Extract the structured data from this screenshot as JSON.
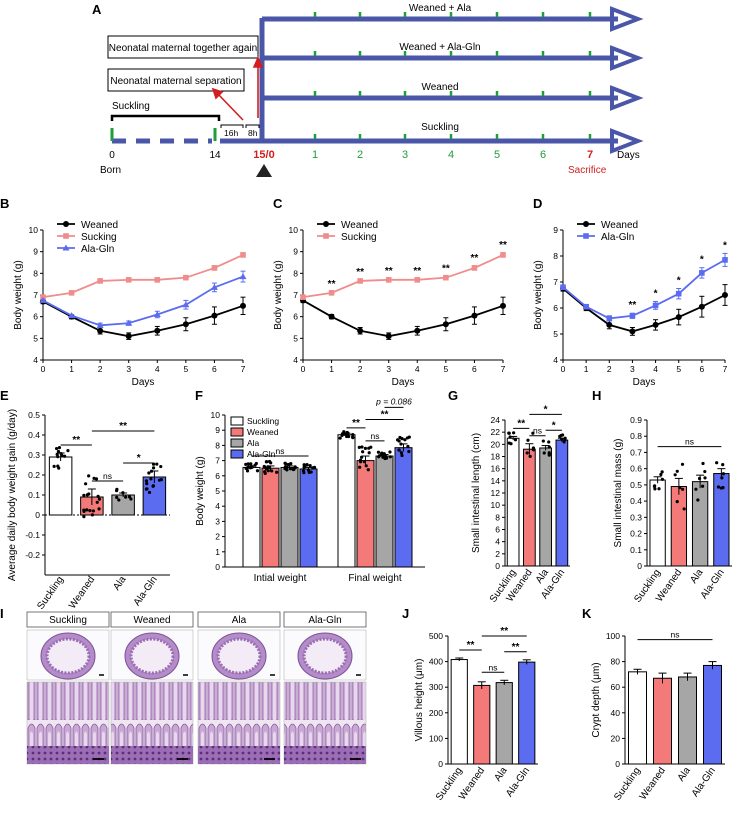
{
  "panel_labels": [
    "A",
    "B",
    "C",
    "D",
    "E",
    "F",
    "G",
    "H",
    "I",
    "J",
    "K"
  ],
  "timeline": {
    "groups": [
      "Weaned + Ala",
      "Weaned + Ala-Gln",
      "Weaned",
      "Suckling"
    ],
    "box_together": "Neonatal maternal together again",
    "box_separation": "Neonatal maternal separation",
    "suckling_label": "Suckling",
    "label_16h": "16h",
    "label_8h": "8h",
    "left_ticks": [
      "0",
      "14"
    ],
    "center_tick": "15/0",
    "day_ticks": [
      "1",
      "2",
      "3",
      "4",
      "5",
      "6",
      "7"
    ],
    "days_label": "Days",
    "born_label": "Born",
    "sacrifice_label": "Sacrifice",
    "colors": {
      "arrow": "#4a56a8",
      "tick": "#1f9e3a",
      "red": "#d21e1e",
      "suckling_bar": "#000000"
    }
  },
  "chart_data": [
    {
      "panel": "B",
      "type": "line",
      "xlabel": "Days",
      "ylabel": "Body weight (g)",
      "x": [
        0,
        1,
        2,
        3,
        4,
        5,
        6,
        7
      ],
      "xlim": [
        0,
        7
      ],
      "ylim": [
        4,
        10
      ],
      "yticks": [
        4,
        5,
        6,
        7,
        8,
        9,
        10
      ],
      "series": [
        {
          "name": "Weaned",
          "color": "#000000",
          "marker": "circle",
          "values": [
            6.7,
            6.0,
            5.35,
            5.1,
            5.35,
            5.65,
            6.05,
            6.5
          ],
          "err": [
            0.1,
            0.1,
            0.15,
            0.15,
            0.2,
            0.3,
            0.4,
            0.4
          ]
        },
        {
          "name": "Sucking",
          "color": "#f08c8c",
          "marker": "square",
          "values": [
            6.9,
            7.1,
            7.65,
            7.7,
            7.7,
            7.8,
            8.25,
            8.85
          ],
          "err": [
            0.05,
            0.05,
            0.05,
            0.05,
            0.05,
            0.05,
            0.1,
            0.1
          ]
        },
        {
          "name": "Ala-Gln",
          "color": "#5b6cf0",
          "marker": "triangle",
          "values": [
            6.75,
            6.05,
            5.6,
            5.7,
            6.1,
            6.55,
            7.35,
            7.85
          ],
          "err": [
            0.05,
            0.05,
            0.1,
            0.1,
            0.15,
            0.2,
            0.2,
            0.25
          ]
        }
      ]
    },
    {
      "panel": "C",
      "type": "line",
      "xlabel": "Days",
      "ylabel": "Body weight (g)",
      "x": [
        0,
        1,
        2,
        3,
        4,
        5,
        6,
        7
      ],
      "xlim": [
        0,
        7
      ],
      "ylim": [
        4,
        10
      ],
      "yticks": [
        4,
        5,
        6,
        7,
        8,
        9,
        10
      ],
      "series": [
        {
          "name": "Weaned",
          "color": "#000000",
          "marker": "circle",
          "values": [
            6.75,
            6.0,
            5.35,
            5.1,
            5.35,
            5.65,
            6.05,
            6.5
          ],
          "err": [
            0.1,
            0.1,
            0.15,
            0.15,
            0.2,
            0.3,
            0.4,
            0.4
          ]
        },
        {
          "name": "Sucking",
          "color": "#f08c8c",
          "marker": "square",
          "values": [
            6.9,
            7.1,
            7.65,
            7.7,
            7.7,
            7.8,
            8.25,
            8.85
          ],
          "err": [
            0.05,
            0.05,
            0.05,
            0.05,
            0.05,
            0.05,
            0.1,
            0.1
          ]
        }
      ],
      "annotations": [
        "",
        "**",
        "**",
        "**",
        "**",
        "**",
        "**",
        "**"
      ]
    },
    {
      "panel": "D",
      "type": "line",
      "xlabel": "Days",
      "ylabel": "Body weight (g)",
      "x": [
        0,
        1,
        2,
        3,
        4,
        5,
        6,
        7
      ],
      "xlim": [
        0,
        7
      ],
      "ylim": [
        4,
        9
      ],
      "yticks": [
        4,
        5,
        6,
        7,
        8,
        9
      ],
      "series": [
        {
          "name": "Weaned",
          "color": "#000000",
          "marker": "circle",
          "values": [
            6.75,
            6.0,
            5.35,
            5.1,
            5.35,
            5.65,
            6.05,
            6.5
          ],
          "err": [
            0.1,
            0.1,
            0.15,
            0.15,
            0.2,
            0.3,
            0.4,
            0.4
          ]
        },
        {
          "name": "Ala-Gln",
          "color": "#5b6cf0",
          "marker": "square",
          "values": [
            6.8,
            6.05,
            5.6,
            5.7,
            6.1,
            6.55,
            7.35,
            7.85
          ],
          "err": [
            0.05,
            0.05,
            0.1,
            0.1,
            0.15,
            0.2,
            0.2,
            0.25
          ]
        }
      ],
      "annotations": [
        "",
        "",
        "",
        "**",
        "*",
        "*",
        "*",
        "*"
      ]
    },
    {
      "panel": "E",
      "type": "bar",
      "ylabel": "Average daily body weight gain (g/day)",
      "categories": [
        "Suckling",
        "Weaned",
        "Ala",
        "Ala-Gln"
      ],
      "values": [
        0.29,
        0.09,
        0.1,
        0.19
      ],
      "err": [
        0.02,
        0.04,
        0.01,
        0.03
      ],
      "ylim": [
        -0.3,
        0.5
      ],
      "yticks": [
        -0.2,
        -0.1,
        0.0,
        0.1,
        0.2,
        0.3,
        0.4,
        0.5
      ],
      "colors": [
        "#ffffff",
        "#f47a7a",
        "#a6a6a6",
        "#5b6cf0"
      ],
      "comparisons": [
        {
          "a": 0,
          "b": 1,
          "label": "**"
        },
        {
          "a": 1,
          "b": 2,
          "label": "ns"
        },
        {
          "a": 2,
          "b": 3,
          "label": "*"
        },
        {
          "a": 1,
          "b": 3,
          "label": "**"
        }
      ]
    },
    {
      "panel": "F",
      "type": "bar",
      "ylabel": "Body weight (g)",
      "groups": [
        "Intial weight",
        "Final weight"
      ],
      "legend": [
        "Suckling",
        "Weaned",
        "Ala",
        "Ala-Gln"
      ],
      "values": [
        [
          6.55,
          6.5,
          6.55,
          6.45
        ],
        [
          8.7,
          7.0,
          7.3,
          7.85
        ]
      ],
      "err": [
        [
          0.1,
          0.15,
          0.1,
          0.1
        ],
        [
          0.1,
          0.3,
          0.1,
          0.25
        ]
      ],
      "ylim": [
        0,
        10
      ],
      "yticks": [
        0,
        1,
        2,
        3,
        4,
        5,
        6,
        7,
        8,
        9,
        10
      ],
      "colors": [
        "#ffffff",
        "#f47a7a",
        "#a6a6a6",
        "#5b6cf0"
      ],
      "top_label": "ns",
      "pval_label": "p = 0.086",
      "comparisons": [
        {
          "a": 0,
          "b": 1,
          "label": "**"
        },
        {
          "a": 1,
          "b": 2,
          "label": "ns"
        },
        {
          "a": 1,
          "b": 3,
          "label": "**"
        }
      ]
    },
    {
      "panel": "G",
      "type": "bar",
      "ylabel": "Small intestinal length (cm)",
      "categories": [
        "Suckling",
        "Weaned",
        "Ala",
        "Ala-Gln"
      ],
      "values": [
        21.0,
        19.2,
        19.4,
        20.7
      ],
      "err": [
        0.3,
        0.9,
        0.4,
        0.3
      ],
      "ylim": [
        0,
        24
      ],
      "yticks": [
        0,
        2,
        4,
        6,
        8,
        10,
        12,
        14,
        16,
        18,
        20,
        22,
        24
      ],
      "colors": [
        "#ffffff",
        "#f47a7a",
        "#a6a6a6",
        "#5b6cf0"
      ],
      "comparisons": [
        {
          "a": 0,
          "b": 1,
          "label": "**"
        },
        {
          "a": 1,
          "b": 2,
          "label": "ns"
        },
        {
          "a": 2,
          "b": 3,
          "label": "*"
        },
        {
          "a": 1,
          "b": 3,
          "label": "*"
        }
      ]
    },
    {
      "panel": "H",
      "type": "bar",
      "ylabel": "Small intestinal mass (g)",
      "categories": [
        "Suckling",
        "Weaned",
        "Ala",
        "Ala-Gln"
      ],
      "values": [
        0.53,
        0.49,
        0.52,
        0.57
      ],
      "err": [
        0.02,
        0.05,
        0.04,
        0.03
      ],
      "ylim": [
        0,
        0.9
      ],
      "yticks": [
        0,
        0.1,
        0.2,
        0.3,
        0.4,
        0.5,
        0.6,
        0.7,
        0.8,
        0.9
      ],
      "colors": [
        "#ffffff",
        "#f47a7a",
        "#a6a6a6",
        "#5b6cf0"
      ],
      "comparisons": [
        {
          "a": 0,
          "b": 3,
          "label": "ns"
        }
      ]
    },
    {
      "panel": "J",
      "type": "bar",
      "ylabel": "Villous height (μm)",
      "categories": [
        "Suckling",
        "Weaned",
        "Ala",
        "Ala-Gln"
      ],
      "values": [
        408,
        307,
        318,
        398
      ],
      "err": [
        6,
        14,
        9,
        9
      ],
      "ylim": [
        0,
        500
      ],
      "yticks": [
        0,
        100,
        200,
        300,
        400,
        500
      ],
      "colors": [
        "#ffffff",
        "#f47a7a",
        "#a6a6a6",
        "#5b6cf0"
      ],
      "comparisons": [
        {
          "a": 0,
          "b": 1,
          "label": "**"
        },
        {
          "a": 1,
          "b": 2,
          "label": "ns"
        },
        {
          "a": 2,
          "b": 3,
          "label": "**"
        },
        {
          "a": 1,
          "b": 3,
          "label": "**"
        }
      ]
    },
    {
      "panel": "K",
      "type": "bar",
      "ylabel": "Crypt depth (μm)",
      "categories": [
        "Suckling",
        "Weaned",
        "Ala",
        "Ala-Gln"
      ],
      "values": [
        72,
        67,
        68,
        77
      ],
      "err": [
        2,
        4,
        3,
        3
      ],
      "ylim": [
        0,
        100
      ],
      "yticks": [
        0,
        20,
        40,
        60,
        80,
        100
      ],
      "colors": [
        "#ffffff",
        "#f47a7a",
        "#a6a6a6",
        "#5b6cf0"
      ],
      "comparisons": [
        {
          "a": 0,
          "b": 3,
          "label": "ns"
        }
      ]
    }
  ],
  "histology": {
    "columns": [
      "Suckling",
      "Weaned",
      "Ala",
      "Ala-Gln"
    ]
  }
}
